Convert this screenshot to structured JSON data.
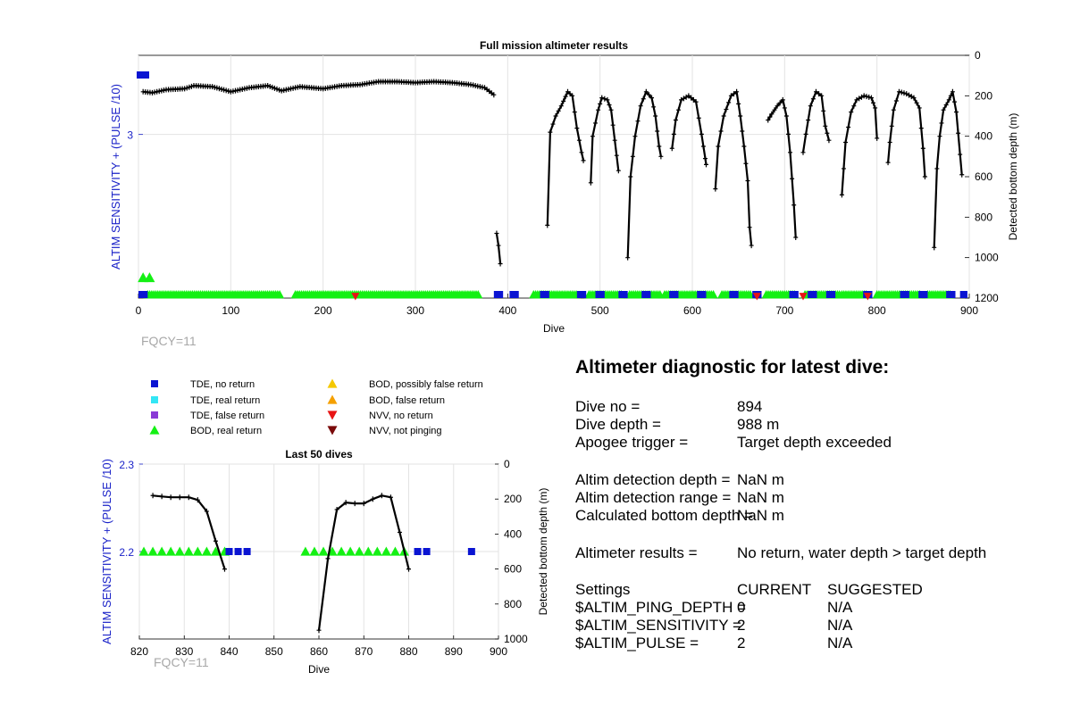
{
  "full_plot": {
    "title": "Full mission altimeter results",
    "fqcy": "FQCY=11"
  },
  "last50_plot": {
    "title": "Last 50 dives",
    "fqcy": "FQCY=11"
  },
  "legend": [
    {
      "label": "TDE, no return",
      "marker": "square",
      "color": "#0a14d2"
    },
    {
      "label": "TDE, real return",
      "marker": "square",
      "color": "#33e6f5"
    },
    {
      "label": "TDE, false return",
      "marker": "square",
      "color": "#8a3ad6"
    },
    {
      "label": "BOD, real return",
      "marker": "triangle-up",
      "color": "#14f014"
    },
    {
      "label": "BOD, possibly false return",
      "marker": "triangle-up",
      "color": "#f5c800"
    },
    {
      "label": "BOD, false return",
      "marker": "triangle-up",
      "color": "#f5a000"
    },
    {
      "label": "NVV, no return",
      "marker": "triangle-down",
      "color": "#e81414"
    },
    {
      "label": "NVV, not pinging",
      "marker": "triangle-down",
      "color": "#7a0a0a"
    }
  ],
  "diagnostic": {
    "title": "Altimeter diagnostic for latest dive:",
    "rows": [
      {
        "label": "Dive no =",
        "value": "894"
      },
      {
        "label": "Dive depth =",
        "value": "988 m"
      },
      {
        "label": "Apogee trigger =",
        "value": "Target depth exceeded"
      },
      {
        "label": "Altim detection depth =",
        "value": "NaN m"
      },
      {
        "label": "Altim detection range =",
        "value": "NaN m"
      },
      {
        "label": "Calculated bottom depth =",
        "value": "NaN m"
      },
      {
        "label": "Altimeter results =",
        "value": "No return, water depth > target depth"
      }
    ],
    "settings_header": {
      "label": "Settings",
      "current": "CURRENT",
      "suggested": "SUGGESTED"
    },
    "settings": [
      {
        "label": "$ALTIM_PING_DEPTH =",
        "current": "0",
        "suggested": "N/A"
      },
      {
        "label": "$ALTIM_SENSITIVITY =",
        "current": "2",
        "suggested": "N/A"
      },
      {
        "label": "$ALTIM_PULSE =",
        "current": "2",
        "suggested": "N/A"
      }
    ]
  },
  "chart_data": [
    {
      "type": "line",
      "title": "Full mission altimeter results",
      "xlabel": "Dive",
      "ylabel_left": "ALTIM SENSITIVITY + (PULSE /10)",
      "ylabel_right": "Detected bottom depth (m)",
      "xlim": [
        0,
        900
      ],
      "x_ticks": [
        0,
        100,
        200,
        300,
        400,
        500,
        600,
        700,
        800,
        900
      ],
      "y_left_ticks": [
        3
      ],
      "y_right_ticks": [
        0,
        200,
        400,
        600,
        800,
        1000,
        1200
      ],
      "y_right_lim": [
        0,
        1200
      ],
      "grid": true,
      "series": [
        {
          "name": "Detected bottom depth",
          "color": "#000000",
          "segments": [
            [
              [
                5,
                180
              ],
              [
                15,
                185
              ],
              [
                30,
                170
              ],
              [
                50,
                165
              ],
              [
                60,
                150
              ],
              [
                80,
                155
              ],
              [
                100,
                180
              ],
              [
                120,
                160
              ],
              [
                140,
                150
              ],
              [
                155,
                175
              ],
              [
                175,
                155
              ],
              [
                200,
                165
              ],
              [
                220,
                150
              ],
              [
                240,
                145
              ],
              [
                260,
                130
              ],
              [
                280,
                130
              ],
              [
                300,
                135
              ],
              [
                320,
                130
              ],
              [
                340,
                135
              ],
              [
                360,
                145
              ],
              [
                375,
                160
              ],
              [
                385,
                195
              ]
            ],
            [
              [
                388,
                880
              ],
              [
                390,
                940
              ],
              [
                392,
                1030
              ]
            ],
            [
              [
                443,
                840
              ],
              [
                446,
                380
              ],
              [
                452,
                300
              ],
              [
                458,
                250
              ],
              [
                465,
                180
              ],
              [
                470,
                200
              ],
              [
                475,
                360
              ],
              [
                480,
                480
              ],
              [
                482,
                520
              ]
            ],
            [
              [
                490,
                630
              ],
              [
                492,
                400
              ],
              [
                498,
                270
              ],
              [
                502,
                210
              ],
              [
                508,
                220
              ],
              [
                512,
                270
              ],
              [
                516,
                420
              ],
              [
                520,
                570
              ]
            ],
            [
              [
                530,
                1000
              ],
              [
                533,
                600
              ],
              [
                538,
                400
              ],
              [
                544,
                250
              ],
              [
                550,
                180
              ],
              [
                556,
                210
              ],
              [
                560,
                300
              ],
              [
                564,
                450
              ],
              [
                566,
                500
              ]
            ],
            [
              [
                578,
                460
              ],
              [
                582,
                320
              ],
              [
                588,
                220
              ],
              [
                596,
                200
              ],
              [
                604,
                230
              ],
              [
                610,
                390
              ],
              [
                614,
                510
              ],
              [
                615,
                540
              ]
            ],
            [
              [
                625,
                660
              ],
              [
                628,
                450
              ],
              [
                634,
                300
              ],
              [
                642,
                200
              ],
              [
                648,
                180
              ],
              [
                652,
                300
              ],
              [
                656,
                450
              ],
              [
                660,
                620
              ],
              [
                662,
                850
              ],
              [
                664,
                940
              ]
            ],
            [
              [
                682,
                320
              ],
              [
                686,
                290
              ],
              [
                692,
                250
              ],
              [
                698,
                220
              ],
              [
                702,
                300
              ],
              [
                706,
                480
              ],
              [
                710,
                740
              ],
              [
                712,
                900
              ]
            ],
            [
              [
                720,
                480
              ],
              [
                723,
                390
              ],
              [
                728,
                250
              ],
              [
                734,
                180
              ],
              [
                740,
                200
              ],
              [
                744,
                350
              ],
              [
                748,
                420
              ]
            ],
            [
              [
                762,
                690
              ],
              [
                766,
                430
              ],
              [
                772,
                280
              ],
              [
                778,
                220
              ],
              [
                786,
                200
              ],
              [
                794,
                210
              ],
              [
                798,
                260
              ],
              [
                800,
                410
              ]
            ],
            [
              [
                812,
                530
              ],
              [
                814,
                430
              ],
              [
                818,
                270
              ],
              [
                824,
                180
              ],
              [
                832,
                190
              ],
              [
                840,
                210
              ],
              [
                846,
                260
              ],
              [
                850,
                460
              ],
              [
                852,
                600
              ]
            ],
            [
              [
                862,
                950
              ],
              [
                865,
                560
              ],
              [
                868,
                400
              ],
              [
                872,
                270
              ],
              [
                878,
                220
              ],
              [
                882,
                180
              ],
              [
                886,
                280
              ],
              [
                890,
                490
              ],
              [
                892,
                590
              ]
            ]
          ]
        }
      ],
      "tde_no_return_blocks": [
        [
          0,
          10
        ],
        [
          385,
          395
        ],
        [
          402,
          412
        ],
        [
          435,
          445
        ],
        [
          475,
          485
        ],
        [
          495,
          505
        ],
        [
          520,
          530
        ],
        [
          545,
          555
        ],
        [
          575,
          585
        ],
        [
          605,
          615
        ],
        [
          640,
          650
        ],
        [
          665,
          675
        ],
        [
          705,
          715
        ],
        [
          725,
          735
        ],
        [
          745,
          755
        ],
        [
          785,
          795
        ],
        [
          825,
          835
        ],
        [
          845,
          855
        ],
        [
          875,
          885
        ],
        [
          890,
          898
        ]
      ],
      "bod_real_return_ranges": [
        [
          10,
          155
        ],
        [
          170,
          370
        ],
        [
          428,
          475
        ],
        [
          488,
          525
        ],
        [
          532,
          566
        ],
        [
          570,
          625
        ],
        [
          632,
          665
        ],
        [
          680,
          712
        ],
        [
          722,
          760
        ],
        [
          762,
          790
        ],
        [
          800,
          848
        ],
        [
          855,
          880
        ]
      ],
      "bod_real_return_extra": [
        [
          5,
          1090
        ],
        [
          12,
          1090
        ]
      ],
      "nvv_no_return": [
        235,
        670,
        720,
        790
      ]
    },
    {
      "type": "line",
      "title": "Last 50 dives",
      "xlabel": "Dive",
      "ylabel_left": "ALTIM SENSITIVITY + (PULSE /10)",
      "ylabel_right": "Detected bottom depth (m)",
      "xlim": [
        820,
        900
      ],
      "x_ticks": [
        820,
        830,
        840,
        850,
        860,
        870,
        880,
        890,
        900
      ],
      "y_left_ticks": [
        2.2,
        2.3
      ],
      "y_left_lim": [
        2.1,
        2.3
      ],
      "y_right_ticks": [
        0,
        200,
        400,
        600,
        800,
        1000
      ],
      "y_right_lim": [
        0,
        1000
      ],
      "grid": true,
      "series": [
        {
          "name": "Detected bottom depth",
          "color": "#000000",
          "segments": [
            [
              [
                823,
                180
              ],
              [
                825,
                185
              ],
              [
                827,
                190
              ],
              [
                829,
                190
              ],
              [
                831,
                190
              ],
              [
                833,
                205
              ],
              [
                835,
                270
              ],
              [
                837,
                440
              ],
              [
                839,
                600
              ]
            ],
            [
              [
                860,
                950
              ],
              [
                862,
                540
              ],
              [
                864,
                260
              ],
              [
                866,
                220
              ],
              [
                868,
                225
              ],
              [
                870,
                225
              ],
              [
                872,
                200
              ],
              [
                874,
                180
              ],
              [
                876,
                190
              ],
              [
                878,
                390
              ],
              [
                880,
                600
              ]
            ]
          ]
        }
      ],
      "bod_real_return_x": [
        821,
        823,
        825,
        827,
        829,
        831,
        833,
        835,
        837,
        839,
        857,
        859,
        861,
        863,
        865,
        867,
        869,
        871,
        873,
        875,
        877,
        879
      ],
      "bod_real_return_value": 2.2,
      "tde_no_return_x": [
        840,
        842,
        844,
        882,
        884,
        894
      ],
      "tde_no_return_value": 2.2
    }
  ]
}
